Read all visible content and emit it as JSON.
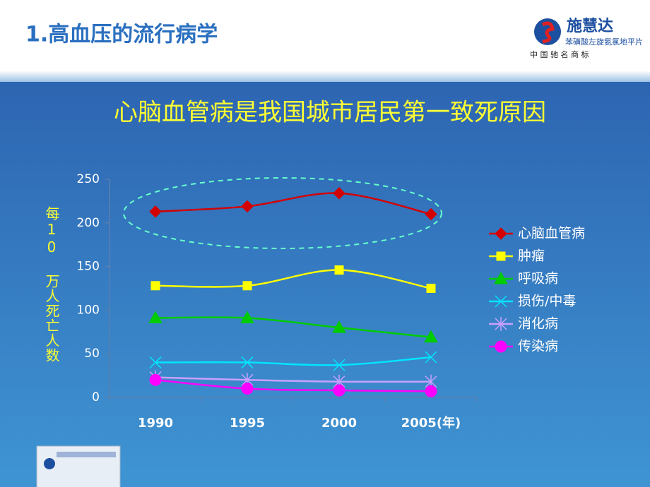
{
  "header": {
    "title": "1.高血压的流行病学",
    "brand": "施慧达",
    "product": "苯磺酸左旋氨氯地平片",
    "trademark": "中 国 驰 名 商 标"
  },
  "chart_data": {
    "type": "line",
    "title": "心脑血管病是我国城市居民第一致死原因",
    "y_label": "每10 万人死亡人数",
    "categories": [
      "1990",
      "1995",
      "2000",
      "2005(年)"
    ],
    "series": [
      {
        "name": "心脑血管病",
        "color": "#d40000",
        "marker": "diamond",
        "values": [
          213,
          219,
          234,
          210
        ]
      },
      {
        "name": "肿瘤",
        "color": "#ffff00",
        "marker": "square",
        "values": [
          128,
          128,
          146,
          125
        ]
      },
      {
        "name": "呼吸病",
        "color": "#00cc00",
        "marker": "triangle",
        "values": [
          91,
          91,
          80,
          69
        ]
      },
      {
        "name": "损伤/中毒",
        "color": "#00e5ff",
        "marker": "x",
        "values": [
          40,
          40,
          37,
          46
        ]
      },
      {
        "name": "消化病",
        "color": "#c9a0ff",
        "marker": "star",
        "values": [
          23,
          20,
          18,
          18
        ]
      },
      {
        "name": "传染病",
        "color": "#ff00ff",
        "marker": "circle",
        "values": [
          20,
          10,
          8,
          7
        ]
      }
    ],
    "ylim": [
      0,
      250
    ],
    "yticks": [
      0,
      50,
      100,
      150,
      200,
      250
    ],
    "legend": "right"
  }
}
